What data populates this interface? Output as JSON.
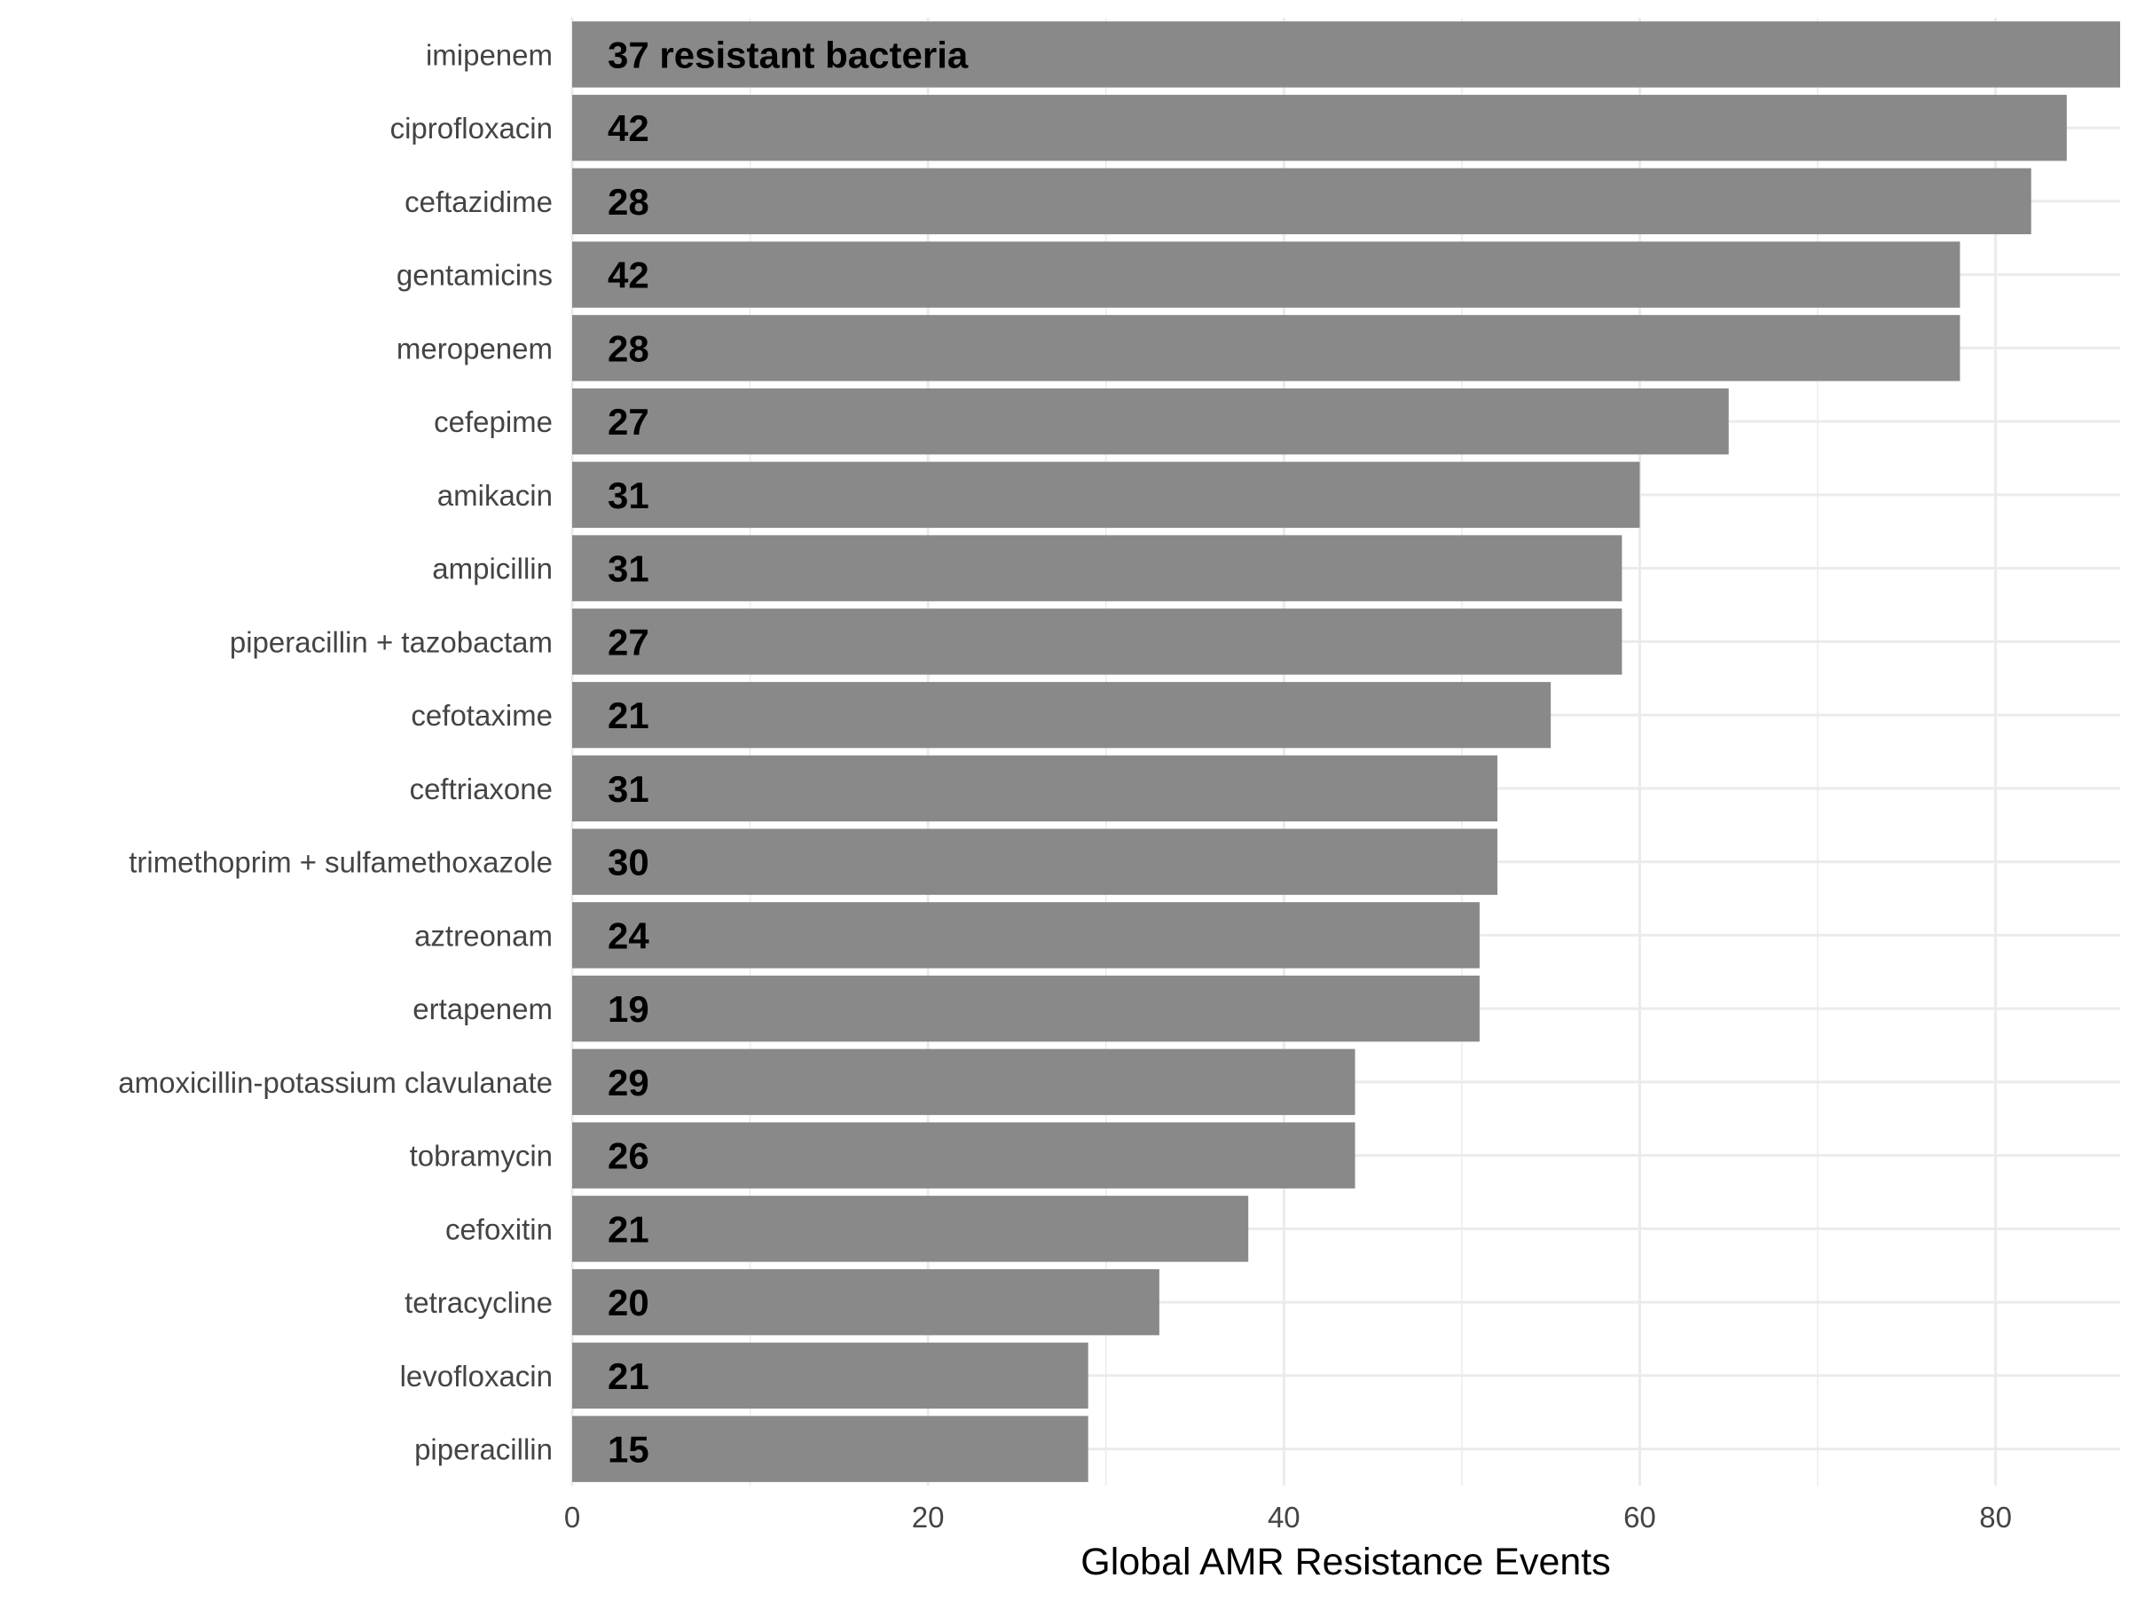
{
  "chart_data": {
    "type": "bar",
    "orientation": "horizontal",
    "title": "",
    "xlabel": "Global AMR Resistance Events",
    "ylabel": "",
    "xlim": [
      0,
      87
    ],
    "xticks": [
      0,
      20,
      40,
      60,
      80
    ],
    "grid": true,
    "bar_color": "#898989",
    "categories": [
      "imipenem",
      "ciprofloxacin",
      "ceftazidime",
      "gentamicins",
      "meropenem",
      "cefepime",
      "amikacin",
      "ampicillin",
      "piperacillin + tazobactam",
      "cefotaxime",
      "ceftriaxone",
      "trimethoprim + sulfamethoxazole",
      "aztreonam",
      "ertapenem",
      "amoxicillin-potassium clavulanate",
      "tobramycin",
      "cefoxitin",
      "tetracycline",
      "levofloxacin",
      "piperacillin"
    ],
    "values": [
      87,
      84,
      82,
      78,
      78,
      65,
      60,
      59,
      59,
      55,
      52,
      52,
      51,
      51,
      44,
      44,
      38,
      33,
      29,
      29
    ],
    "bar_labels": [
      "37 resistant bacteria",
      "42",
      "28",
      "42",
      "28",
      "27",
      "31",
      "31",
      "27",
      "21",
      "31",
      "30",
      "24",
      "19",
      "29",
      "26",
      "21",
      "20",
      "21",
      "15"
    ]
  }
}
